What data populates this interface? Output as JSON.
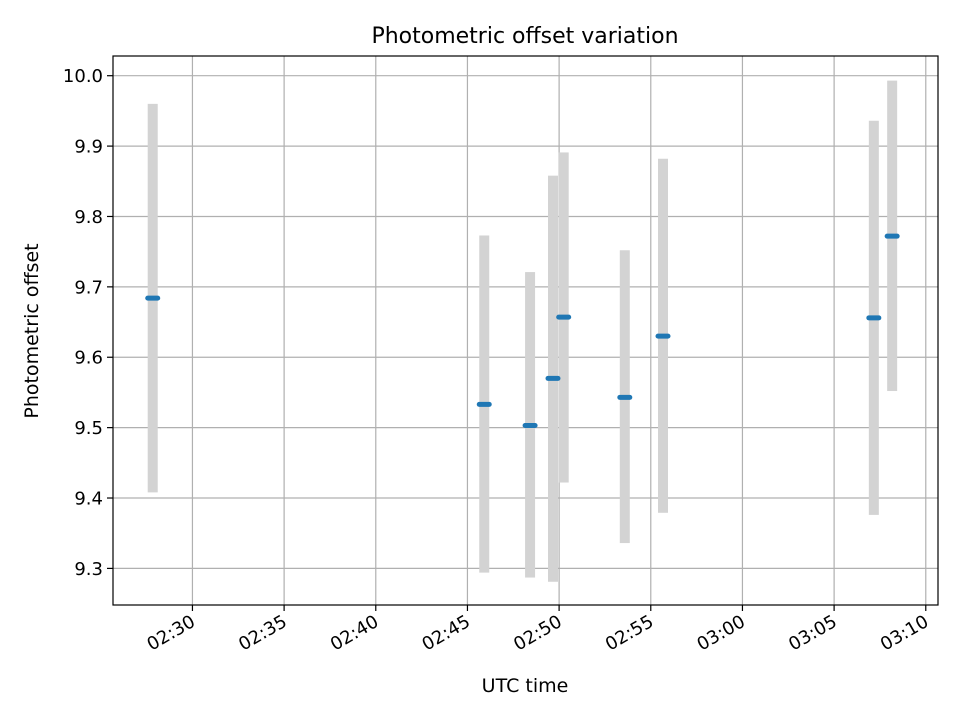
{
  "chart_data": {
    "type": "scatter",
    "title": "Photometric offset variation",
    "xlabel": "UTC time",
    "ylabel": "Photometric offset",
    "xlim": [
      "02:25:40",
      "03:10:40"
    ],
    "ylim": [
      9.248,
      10.028
    ],
    "x_ticks": [
      "02:30",
      "02:35",
      "02:40",
      "02:45",
      "02:50",
      "02:55",
      "03:00",
      "03:05",
      "03:10"
    ],
    "y_ticks": [
      "9.3",
      "9.4",
      "9.5",
      "9.6",
      "9.7",
      "9.8",
      "9.9",
      "10.0"
    ],
    "grid": true,
    "legend": "none",
    "colors": {
      "point": "#1f77b4",
      "error_bar": "#d3d3d3",
      "grid": "#b0b0b0"
    },
    "points": [
      {
        "x": "02:27:50",
        "y": 9.684,
        "ylow": 9.408,
        "yhigh": 9.96
      },
      {
        "x": "02:45:55",
        "y": 9.533,
        "ylow": 9.294,
        "yhigh": 9.773
      },
      {
        "x": "02:48:25",
        "y": 9.503,
        "ylow": 9.287,
        "yhigh": 9.721
      },
      {
        "x": "02:49:40",
        "y": 9.57,
        "ylow": 9.281,
        "yhigh": 9.858
      },
      {
        "x": "02:50:15",
        "y": 9.657,
        "ylow": 9.422,
        "yhigh": 9.891
      },
      {
        "x": "02:53:35",
        "y": 9.543,
        "ylow": 9.336,
        "yhigh": 9.752
      },
      {
        "x": "02:55:40",
        "y": 9.63,
        "ylow": 9.379,
        "yhigh": 9.882
      },
      {
        "x": "03:07:10",
        "y": 9.656,
        "ylow": 9.376,
        "yhigh": 9.936
      },
      {
        "x": "03:08:10",
        "y": 9.772,
        "ylow": 9.552,
        "yhigh": 9.993
      }
    ]
  }
}
